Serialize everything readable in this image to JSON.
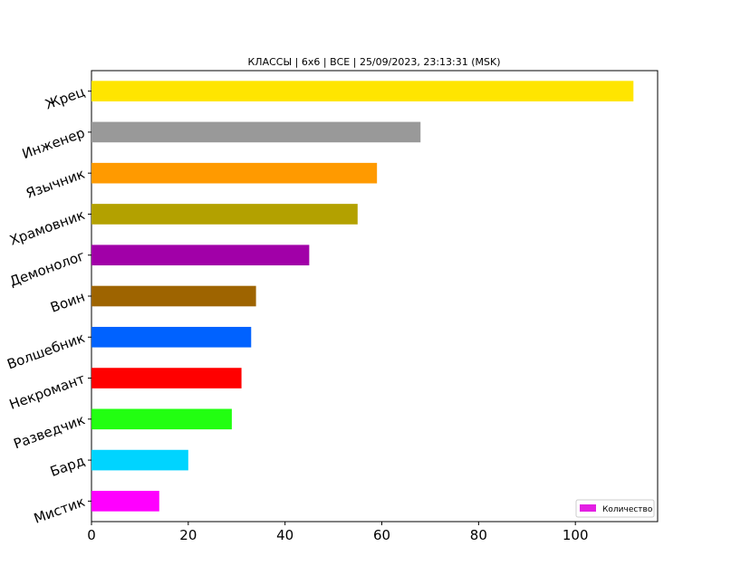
{
  "chart_data": {
    "type": "bar",
    "orientation": "horizontal",
    "title": "КЛАССЫ | 6х6 | ВСЕ | 25/09/2023, 23:13:31 (MSK)",
    "xlabel": "",
    "ylabel": "",
    "xlim": [
      0,
      117
    ],
    "x_ticks": [
      0,
      20,
      40,
      60,
      80,
      100
    ],
    "grid": false,
    "legend_position": "bottom-right",
    "categories": [
      "Жрец",
      "Инженер",
      "Язычник",
      "Храмовник",
      "Демонолог",
      "Воин",
      "Волшебник",
      "Некромант",
      "Разведчик",
      "Бард",
      "Мистик"
    ],
    "series": [
      {
        "name": "Количество",
        "values": [
          112,
          68,
          59,
          55,
          45,
          34,
          33,
          31,
          29,
          20,
          14
        ],
        "colors": [
          "#FFE500",
          "#999999",
          "#FF9A00",
          "#B3A100",
          "#A100A8",
          "#9E6400",
          "#0062FF",
          "#FF0000",
          "#22FF11",
          "#00D4FF",
          "#FF00FF"
        ]
      }
    ],
    "legend_swatch_color": "#E31FE3"
  }
}
